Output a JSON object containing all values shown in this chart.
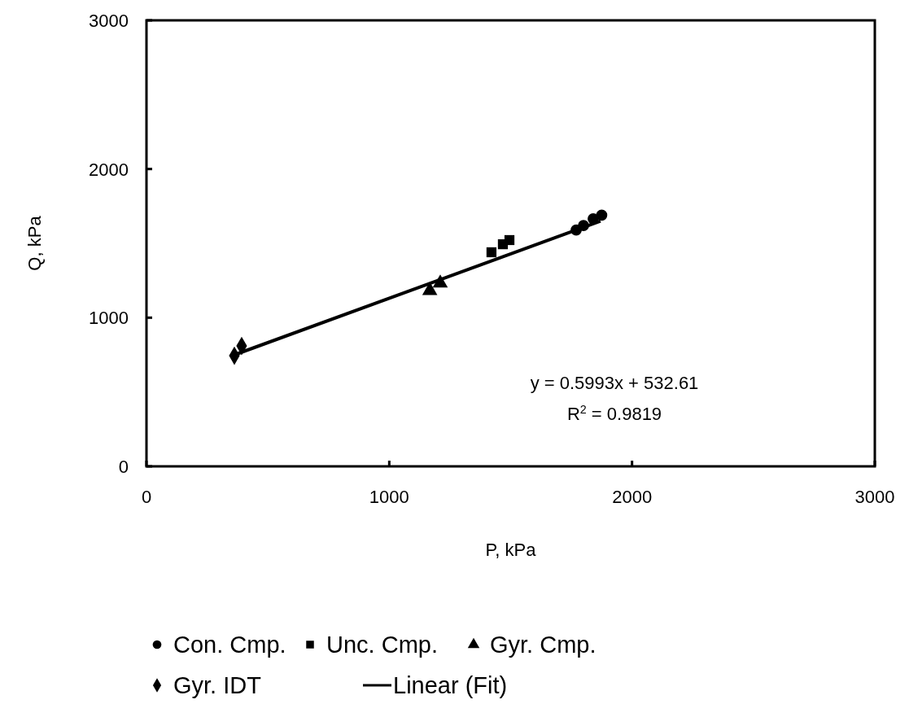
{
  "chart_data": {
    "type": "scatter",
    "xlabel": "P, kPa",
    "ylabel": "Q, kPa",
    "xlim": [
      0,
      3000
    ],
    "ylim": [
      0,
      3000
    ],
    "xticks": [
      0,
      1000,
      2000,
      3000
    ],
    "yticks": [
      0,
      1000,
      2000,
      3000
    ],
    "grid": false,
    "legend": "bottom",
    "series": [
      {
        "name": "Con. Cmp.",
        "color": "#000000",
        "marker": "circle",
        "x": [
          1770,
          1800,
          1840,
          1875
        ],
        "values": [
          1590,
          1620,
          1665,
          1690
        ]
      },
      {
        "name": "Unc. Cmp.",
        "color": "#000000",
        "marker": "square",
        "x": [
          1421,
          1468,
          1495
        ],
        "values": [
          1440,
          1494,
          1522
        ]
      },
      {
        "name": "Gyr. Cmp.",
        "color": "#000000",
        "marker": "triangle",
        "x": [
          1167,
          1210
        ],
        "values": [
          1182,
          1232
        ]
      },
      {
        "name": "Gyr. IDT",
        "color": "#000000",
        "marker": "diamond",
        "x": [
          362,
          392
        ],
        "values": [
          744,
          810
        ]
      },
      {
        "name": "Linear (Fit)",
        "type": "line",
        "color": "#000000",
        "marker": "none",
        "line_style": "solid",
        "x": [
          362,
          1870
        ],
        "values": [
          750,
          1650
        ]
      }
    ],
    "annotations": [
      "y = 0.5993x + 532.61",
      "R$^{2}$ = 0.9819"
    ]
  }
}
